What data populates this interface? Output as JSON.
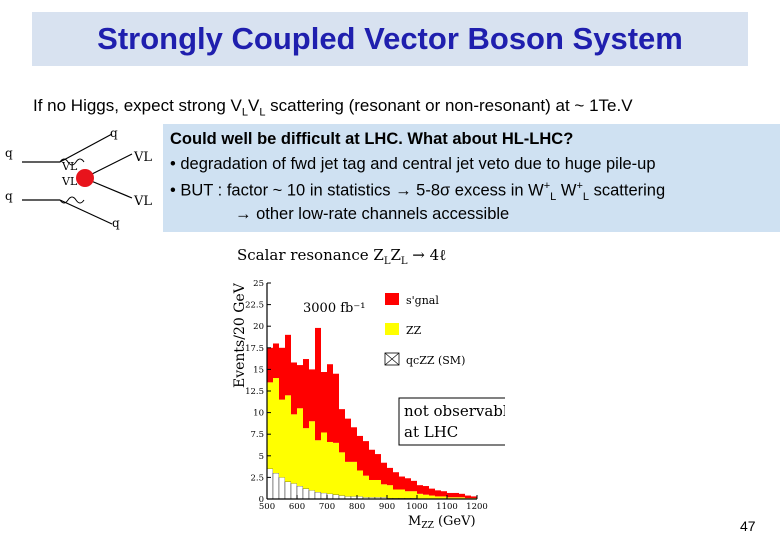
{
  "slide": {
    "title": "Strongly Coupled Vector Boson System",
    "subtitle": {
      "prefix": "If no Higgs,  expect  strong V",
      "sub1": "L",
      "mid": "V",
      "sub2": "L",
      "suffix": " scattering (resonant or  non-resonant) at ~ 1Te.V"
    },
    "page_number": "47"
  },
  "info_box": {
    "line1": "Could well be difficult at LHC. What about HL-LHC?",
    "line2": "• degradation of fwd jet tag and central jet veto due to huge pile-up",
    "line3_prefix": "• BUT : factor ~ 10 in statistics → 5-8σ excess in W",
    "line3_sup1": "+",
    "line3_sub1": "L",
    "line3_mid": " W",
    "line3_sup2": "+",
    "line3_sub2": "L",
    "line3_suffix": " scattering",
    "line4": "→ other low-rate channels accessible"
  },
  "feynman": {
    "q_top": "q",
    "q_left_top": "q",
    "q_left_bottom": "q",
    "q_bottom": "q",
    "vl_in_top": "VL",
    "vl_in_bottom": "VL",
    "vl_out_top": "VL",
    "vl_out_bottom": "VL",
    "blob_color": "#e8141c"
  },
  "chart_data": {
    "type": "bar",
    "title": "Scalar resonance Z",
    "title_sub1": "L",
    "title_mid": "Z",
    "title_sub2": "L",
    "title_suffix": " → 4ℓ",
    "luminosity": "3000 fb⁻¹",
    "xlabel": "M",
    "xlabel_sub": "ZZ",
    "xlabel_unit": " (GeV)",
    "ylabel": "Events/20 GeV",
    "x_ticks": [
      "500",
      "600",
      "700",
      "800",
      "900",
      "1000",
      "1100",
      "1200"
    ],
    "y_ticks": [
      "0",
      "2.5",
      "5",
      "7.5",
      "10",
      "12.5",
      "15",
      "17.5",
      "20",
      "22.5",
      "25"
    ],
    "xlim": [
      500,
      1200
    ],
    "ylim": [
      0,
      25
    ],
    "bin_width": 20,
    "x": [
      500,
      520,
      540,
      560,
      580,
      600,
      620,
      640,
      660,
      680,
      700,
      720,
      740,
      760,
      780,
      800,
      820,
      840,
      860,
      880,
      900,
      920,
      940,
      960,
      980,
      1000,
      1020,
      1040,
      1060,
      1080,
      1100,
      1120,
      1140,
      1160,
      1180
    ],
    "series": [
      {
        "name": "qcZZ (SM)",
        "color": "#ffffff",
        "values": [
          3.5,
          3.0,
          2.5,
          2.0,
          1.8,
          1.5,
          1.2,
          1.0,
          0.8,
          0.7,
          0.6,
          0.5,
          0.4,
          0.3,
          0.3,
          0.3,
          0.2,
          0.2,
          0.2,
          0.2,
          0.1,
          0.1,
          0.1,
          0.1,
          0.1,
          0.0,
          0.0,
          0.0,
          0.0,
          0.0,
          0.0,
          0.0,
          0.0,
          0.0,
          0.0
        ]
      },
      {
        "name": "ZZ",
        "color": "#ffff00",
        "values": [
          10,
          11,
          9,
          10,
          8,
          9,
          7,
          8,
          6,
          7,
          6,
          6,
          5,
          4,
          4,
          3,
          2.5,
          2,
          2,
          1.5,
          1.5,
          1,
          1,
          0.8,
          0.8,
          0.6,
          0.5,
          0.4,
          0.3,
          0.3,
          0.2,
          0.2,
          0.2,
          0.1,
          0.1
        ]
      },
      {
        "name": "s'gnal",
        "color": "#ff0000",
        "values": [
          4,
          4,
          6,
          7,
          6,
          5,
          8,
          6,
          13,
          7,
          9,
          8,
          5,
          5,
          4,
          4,
          4,
          3.5,
          3,
          2.5,
          2,
          2,
          1.5,
          1.5,
          1.2,
          1,
          1,
          0.8,
          0.7,
          0.6,
          0.5,
          0.5,
          0.4,
          0.3,
          0.2
        ]
      }
    ],
    "annotation": {
      "line1": "not observable",
      "line2": "at LHC"
    }
  }
}
